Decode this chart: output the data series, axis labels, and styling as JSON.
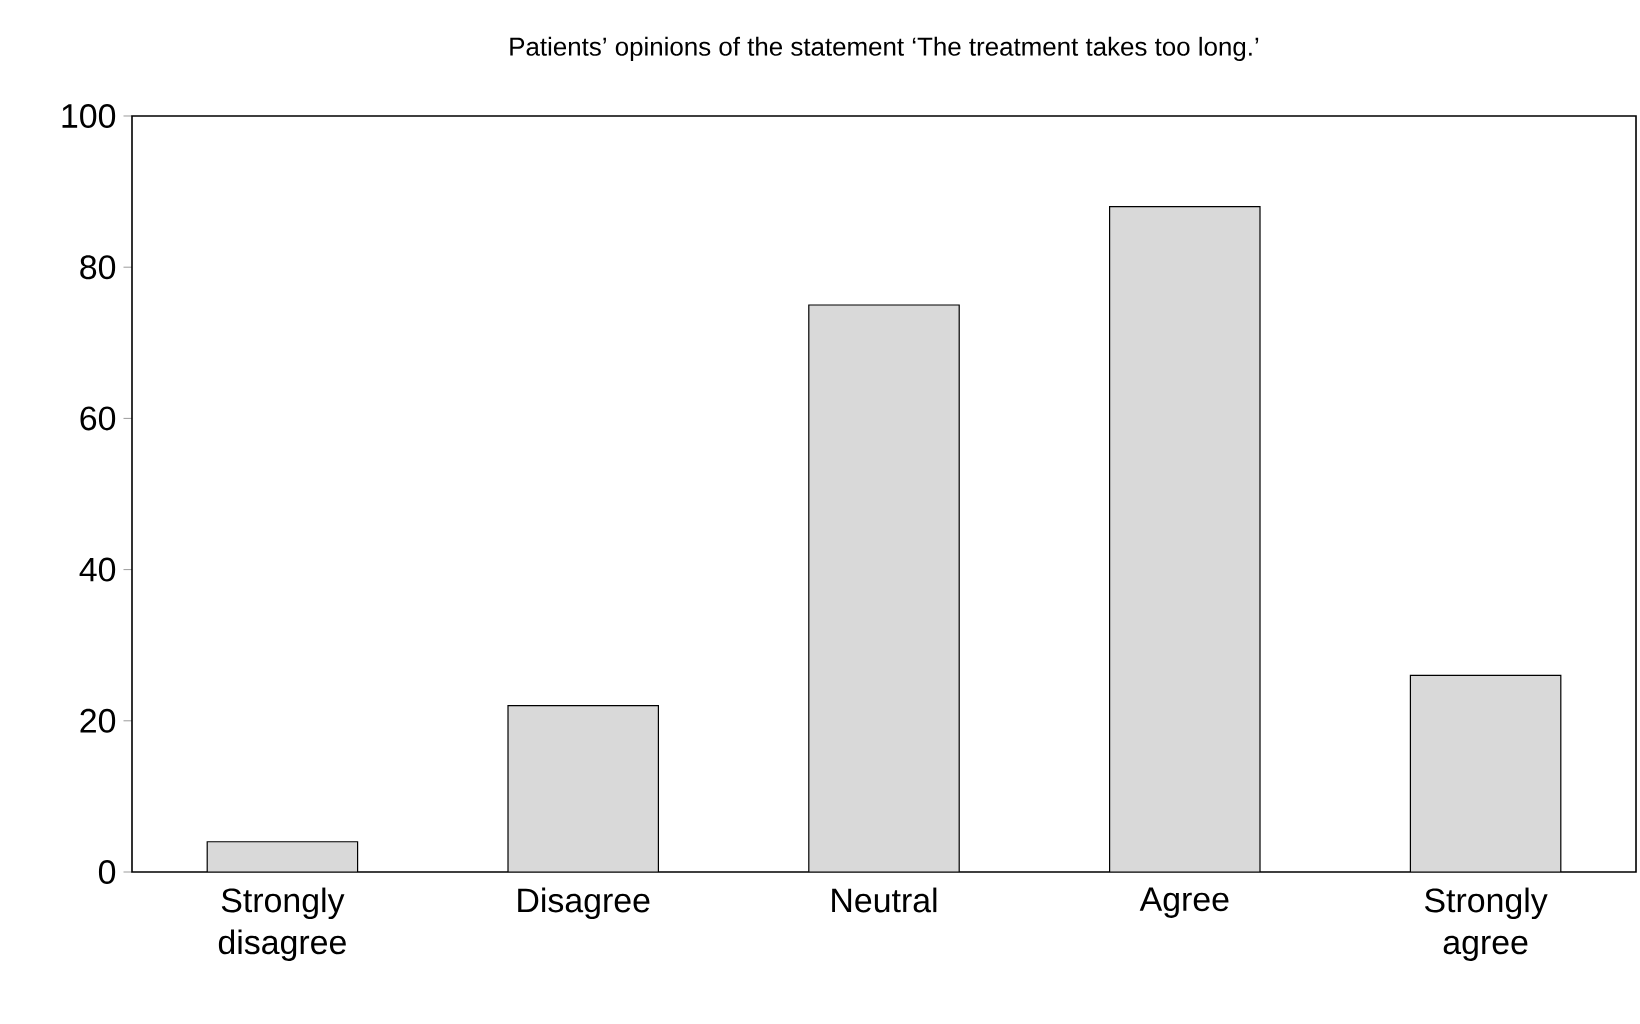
{
  "chart_data": {
    "type": "bar",
    "title": "Patients’ opinions of the statement ‘The treatment takes too long.’",
    "categories": [
      "Strongly disagree",
      "Disagree",
      "Neutral",
      "Agree",
      "Strongly agree"
    ],
    "values": [
      4,
      22,
      75,
      88,
      26
    ],
    "color": "#d9d9d9",
    "ylim": [
      0,
      100
    ],
    "yticks": [
      0,
      20,
      40,
      60,
      80,
      100
    ],
    "grid": false
  }
}
